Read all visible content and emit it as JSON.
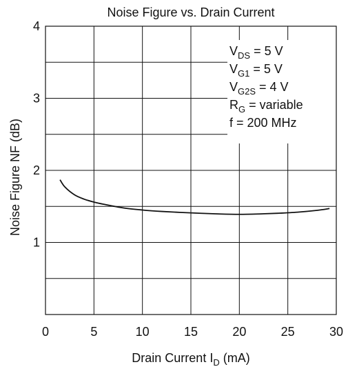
{
  "chart_data": {
    "type": "line",
    "title": "Noise Figure vs. Drain Current",
    "xlabel_main": "Drain Current I",
    "xlabel_sub": "D",
    "xlabel_unit": " (mA)",
    "ylabel": "Noise Figure NF (dB)",
    "xlim": [
      0,
      30
    ],
    "ylim": [
      0,
      4
    ],
    "x_ticks": [
      0,
      5,
      10,
      15,
      20,
      25,
      30
    ],
    "x_tick_labels": [
      "0",
      "5",
      "10",
      "15",
      "20",
      "25",
      "30"
    ],
    "y_ticks": [
      1,
      2,
      3,
      4
    ],
    "y_tick_labels": [
      "1",
      "2",
      "3",
      "4"
    ],
    "grid": true,
    "x_gridlines": [
      5,
      10,
      15,
      20,
      25
    ],
    "y_gridlines": [
      0.5,
      1,
      1.5,
      2,
      2.5,
      3,
      3.5
    ],
    "series": [
      {
        "x": [
          1.5,
          2,
          3,
          4,
          5,
          6,
          8,
          10,
          12,
          15,
          18,
          20,
          22,
          24,
          26,
          28,
          29.3
        ],
        "y": [
          1.87,
          1.77,
          1.66,
          1.6,
          1.56,
          1.53,
          1.48,
          1.45,
          1.43,
          1.41,
          1.395,
          1.39,
          1.395,
          1.405,
          1.42,
          1.445,
          1.47
        ]
      }
    ],
    "annotations": [
      {
        "main": "V",
        "sub": "DS",
        "rest": " = 5 V"
      },
      {
        "main": "V",
        "sub": "G1",
        "rest": " = 5 V"
      },
      {
        "main": "V",
        "sub": "G2S",
        "rest": " = 4 V"
      },
      {
        "main": "R",
        "sub": "G",
        "rest": " = variable"
      },
      {
        "main": "f = 200 MHz",
        "sub": "",
        "rest": ""
      }
    ]
  }
}
